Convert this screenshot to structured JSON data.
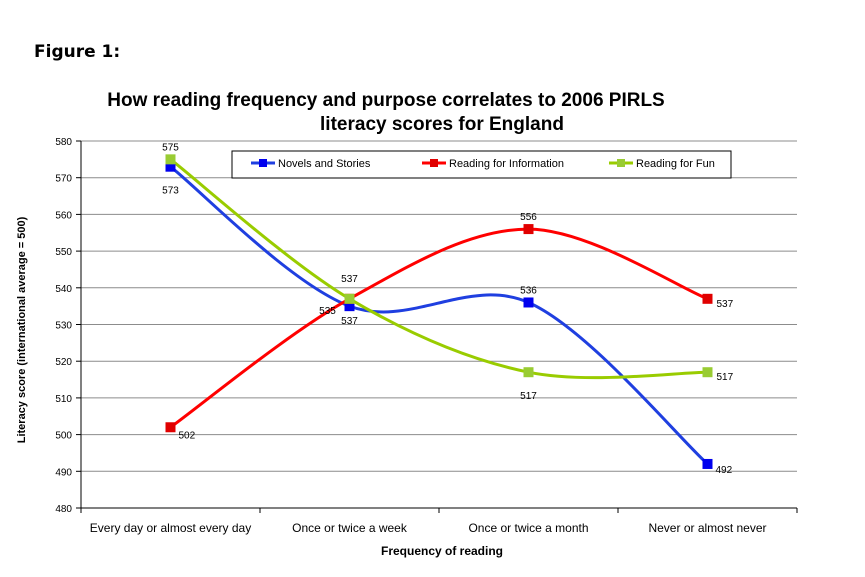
{
  "figure_label": "Figure 1:",
  "chart_data": {
    "type": "line",
    "title_lines": [
      "How reading frequency and purpose correlates to 2006 PIRLS",
      "literacy scores for England"
    ],
    "xlabel": "Frequency of reading",
    "ylabel": "Literacy score (international average = 500)",
    "categories": [
      "Every day or almost every day",
      "Once or twice a week",
      "Once or twice a month",
      "Never or almost never"
    ],
    "ylim": [
      480,
      580
    ],
    "yticks": [
      480,
      490,
      500,
      510,
      520,
      530,
      540,
      550,
      560,
      570,
      580
    ],
    "grid": true,
    "legend_position": "top-right",
    "series": [
      {
        "name": "Novels and Stories",
        "values": [
          573,
          535,
          536,
          492
        ],
        "labels": [
          "573",
          "535",
          "536",
          "492"
        ],
        "color": "#1f3fe0",
        "marker": "#0000ee"
      },
      {
        "name": "Reading for Information",
        "values": [
          502,
          537,
          556,
          537
        ],
        "labels": [
          "502",
          "537",
          "556",
          "537"
        ],
        "color": "#ff0000",
        "marker": "#e00000"
      },
      {
        "name": "Reading for Fun",
        "values": [
          575,
          537,
          517,
          517
        ],
        "labels": [
          "575",
          "537",
          "517",
          "517"
        ],
        "color": "#99cc00",
        "marker": "#99cc33"
      }
    ]
  }
}
